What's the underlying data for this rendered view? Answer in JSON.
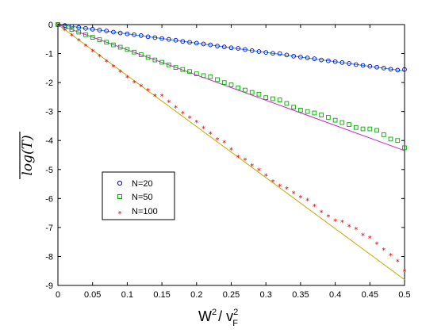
{
  "chart_data": {
    "type": "scatter",
    "xlabel": {
      "base": "W",
      "sup": "2",
      "sep": "/ ",
      "base2": "v",
      "sup2": "2",
      "sub2": "F"
    },
    "ylabel": "log(T)",
    "xlim": [
      0,
      0.5
    ],
    "ylim": [
      -9,
      0
    ],
    "xticks": [
      "0",
      "0.05",
      "0.1",
      "0.15",
      "0.2",
      "0.25",
      "0.3",
      "0.35",
      "0.4",
      "0.45",
      "0.5"
    ],
    "yticks": [
      "0",
      "-1",
      "-2",
      "-3",
      "-4",
      "-5",
      "-6",
      "-7",
      "-8",
      "-9"
    ],
    "legend_position": "lower-left",
    "series": [
      {
        "name": "N=20",
        "marker": "circle",
        "color": "#0000cc",
        "fit_color": "#1a8fd6",
        "fit_slope": -3.2,
        "x": [
          0,
          0.01,
          0.02,
          0.03,
          0.04,
          0.05,
          0.06,
          0.07,
          0.08,
          0.09,
          0.1,
          0.11,
          0.12,
          0.13,
          0.14,
          0.15,
          0.16,
          0.17,
          0.18,
          0.19,
          0.2,
          0.21,
          0.22,
          0.23,
          0.24,
          0.25,
          0.26,
          0.27,
          0.28,
          0.29,
          0.3,
          0.31,
          0.32,
          0.33,
          0.34,
          0.35,
          0.36,
          0.37,
          0.38,
          0.39,
          0.4,
          0.41,
          0.42,
          0.43,
          0.44,
          0.45,
          0.46,
          0.47,
          0.48,
          0.49,
          0.5
        ],
        "y": [
          0,
          -0.03,
          -0.06,
          -0.1,
          -0.13,
          -0.16,
          -0.19,
          -0.22,
          -0.26,
          -0.29,
          -0.32,
          -0.35,
          -0.38,
          -0.42,
          -0.45,
          -0.48,
          -0.51,
          -0.54,
          -0.58,
          -0.61,
          -0.64,
          -0.67,
          -0.7,
          -0.74,
          -0.77,
          -0.8,
          -0.82,
          -0.86,
          -0.9,
          -0.93,
          -0.96,
          -0.99,
          -1.0,
          -1.05,
          -1.09,
          -1.12,
          -1.15,
          -1.18,
          -1.22,
          -1.25,
          -1.28,
          -1.31,
          -1.34,
          -1.38,
          -1.41,
          -1.44,
          -1.47,
          -1.5,
          -1.54,
          -1.57,
          -1.55
        ]
      },
      {
        "name": "N=50",
        "marker": "square",
        "color": "#00aa00",
        "fit_color": "#cc22cc",
        "fit_slope": -8.7,
        "x": [
          0,
          0.01,
          0.02,
          0.03,
          0.04,
          0.05,
          0.06,
          0.07,
          0.08,
          0.09,
          0.1,
          0.11,
          0.12,
          0.13,
          0.14,
          0.15,
          0.16,
          0.17,
          0.18,
          0.19,
          0.2,
          0.21,
          0.22,
          0.23,
          0.24,
          0.25,
          0.26,
          0.27,
          0.28,
          0.29,
          0.3,
          0.31,
          0.32,
          0.33,
          0.34,
          0.35,
          0.36,
          0.37,
          0.38,
          0.39,
          0.4,
          0.41,
          0.42,
          0.43,
          0.44,
          0.45,
          0.46,
          0.47,
          0.48,
          0.49,
          0.5
        ],
        "y": [
          0,
          -0.09,
          -0.17,
          -0.26,
          -0.35,
          -0.44,
          -0.52,
          -0.61,
          -0.7,
          -0.78,
          -0.86,
          -0.95,
          -1.04,
          -1.13,
          -1.22,
          -1.3,
          -1.39,
          -1.48,
          -1.55,
          -1.62,
          -1.7,
          -1.76,
          -1.8,
          -1.9,
          -2.0,
          -2.08,
          -2.18,
          -2.26,
          -2.34,
          -2.4,
          -2.52,
          -2.56,
          -2.6,
          -2.72,
          -2.85,
          -2.95,
          -3.0,
          -3.05,
          -3.12,
          -3.2,
          -3.3,
          -3.38,
          -3.45,
          -3.55,
          -3.6,
          -3.6,
          -3.65,
          -3.8,
          -3.95,
          -4.0,
          -4.25
        ]
      },
      {
        "name": "N=100",
        "marker": "star",
        "color": "#dd0000",
        "fit_color": "#c8a800",
        "fit_slope": -17.6,
        "x": [
          0,
          0.01,
          0.02,
          0.03,
          0.04,
          0.05,
          0.06,
          0.07,
          0.08,
          0.09,
          0.1,
          0.11,
          0.12,
          0.13,
          0.14,
          0.15,
          0.16,
          0.17,
          0.18,
          0.19,
          0.2,
          0.21,
          0.22,
          0.23,
          0.24,
          0.25,
          0.26,
          0.27,
          0.28,
          0.29,
          0.3,
          0.31,
          0.32,
          0.33,
          0.34,
          0.35,
          0.36,
          0.37,
          0.38,
          0.39,
          0.4,
          0.41,
          0.42,
          0.43,
          0.44,
          0.45,
          0.46,
          0.47,
          0.48,
          0.49,
          0.5
        ],
        "y": [
          0,
          -0.18,
          -0.36,
          -0.54,
          -0.72,
          -0.9,
          -1.08,
          -1.26,
          -1.44,
          -1.62,
          -1.8,
          -1.98,
          -2.1,
          -2.25,
          -2.45,
          -2.45,
          -2.65,
          -2.85,
          -3.05,
          -3.2,
          -3.35,
          -3.55,
          -3.75,
          -3.95,
          -4.05,
          -4.3,
          -4.55,
          -4.65,
          -4.85,
          -5.0,
          -5.2,
          -5.4,
          -5.55,
          -5.65,
          -5.8,
          -5.95,
          -6.05,
          -6.25,
          -6.45,
          -6.6,
          -6.75,
          -6.8,
          -6.95,
          -7.05,
          -7.25,
          -7.35,
          -7.55,
          -7.75,
          -7.95,
          -8.15,
          -8.5
        ]
      }
    ]
  }
}
